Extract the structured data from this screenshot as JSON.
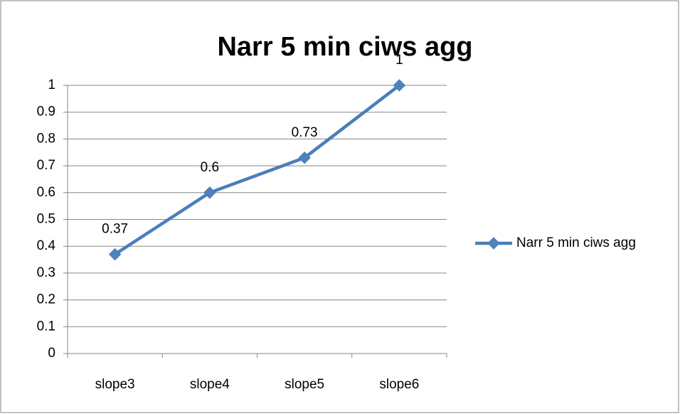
{
  "chart_data": {
    "type": "line",
    "title": "Narr 5 min ciws agg",
    "categories": [
      "slope3",
      "slope4",
      "slope5",
      "slope6"
    ],
    "series": [
      {
        "name": "Narr 5 min ciws agg",
        "color": "#4a7ebb",
        "values": [
          0.37,
          0.6,
          0.73,
          1
        ]
      }
    ],
    "ylim": [
      0,
      1
    ],
    "yticks": [
      0,
      0.1,
      0.2,
      0.3,
      0.4,
      0.5,
      0.6,
      0.7,
      0.8,
      0.9,
      1
    ],
    "grid": true,
    "legend": "right"
  }
}
